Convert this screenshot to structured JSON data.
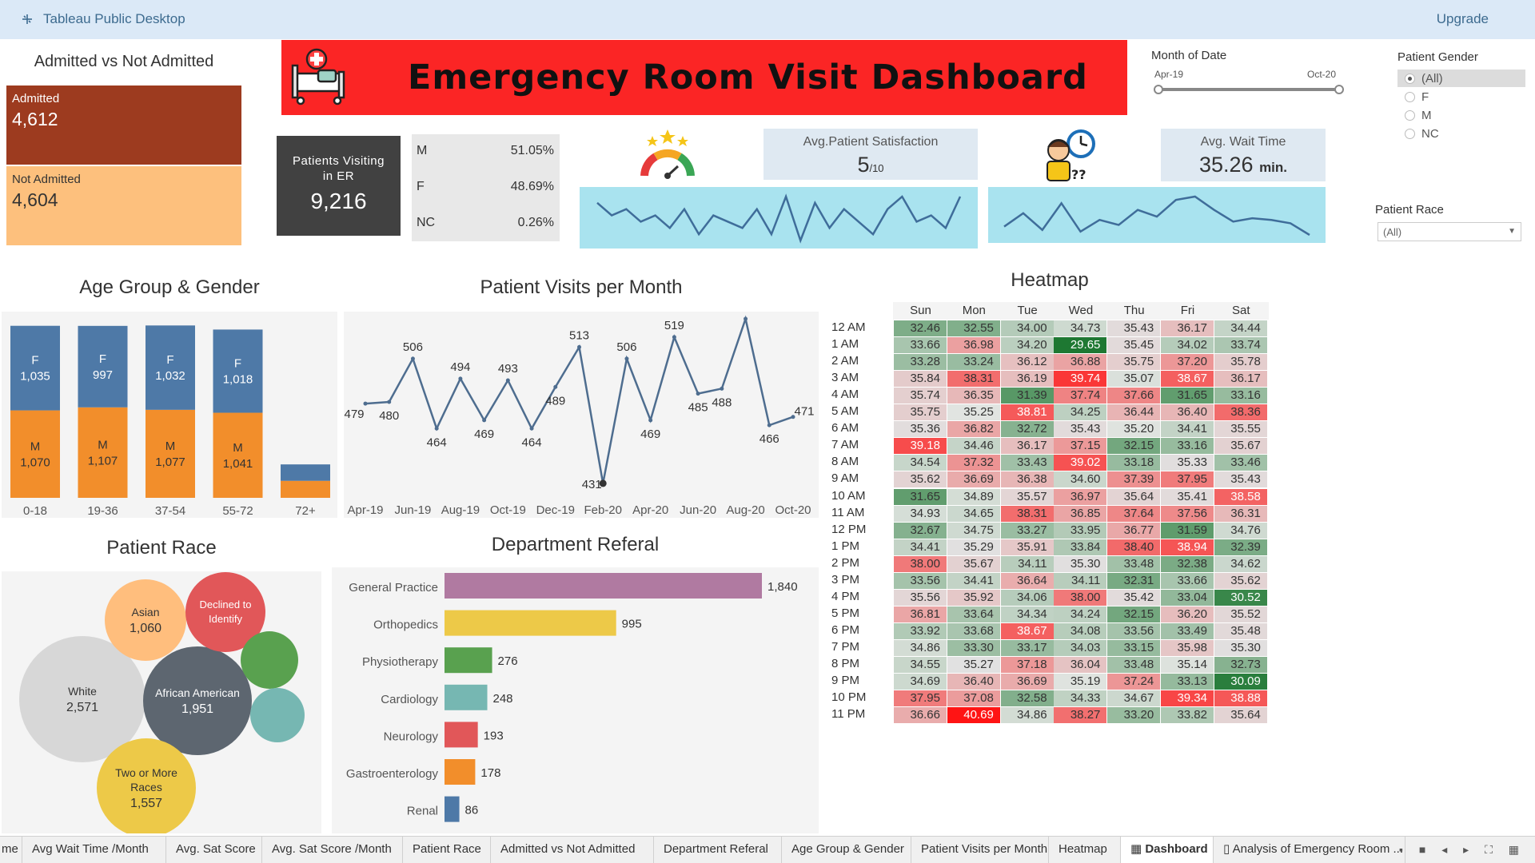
{
  "app": {
    "title": "Tableau Public Desktop",
    "upgrade": "Upgrade"
  },
  "banner": {
    "title": "Emergency Room Visit Dashboard",
    "icon": "hospital-bed-icon"
  },
  "admitted": {
    "title": "Admitted vs Not Admitted",
    "admitted_label": "Admitted",
    "admitted_value": "4,612",
    "not_admitted_label": "Not Admitted",
    "not_admitted_value": "4,604",
    "colors": {
      "admitted": "#9d3b1f",
      "not_admitted": "#fdc07d"
    }
  },
  "patients": {
    "label_line1": "Patients Visiting",
    "label_line2": "in  ER",
    "value": "9,216",
    "gender": [
      {
        "g": "M",
        "p": "51.05%"
      },
      {
        "g": "F",
        "p": "48.69%"
      },
      {
        "g": "NC",
        "p": "0.26%"
      }
    ]
  },
  "satisfaction": {
    "label": "Avg.Patient Satisfaction",
    "value": "5",
    "suffix": "/10",
    "icon": "rating-gauge-icon"
  },
  "wait": {
    "label": "Avg. Wait Time",
    "value": "35.26",
    "suffix": "min.",
    "icon": "waiting-person-clock-icon"
  },
  "filters": {
    "month_label": "Month of Date",
    "month_start": "Apr-19",
    "month_end": "Oct-20",
    "gender_label": "Patient Gender",
    "gender_options": [
      "(All)",
      "F",
      "M",
      "NC"
    ],
    "gender_selected": "(All)",
    "race_label": "Patient Race",
    "race_value": "(All)"
  },
  "age_chart": {
    "title": "Age Group & Gender",
    "categories": [
      "0-18",
      "19-36",
      "37-54",
      "55-72",
      "72+"
    ],
    "female": [
      1035,
      997,
      1032,
      1018,
      201
    ],
    "male": [
      1070,
      1107,
      1077,
      1041,
      208
    ],
    "female_labels": [
      "1,035",
      "997",
      "1,032",
      "1,018",
      ""
    ],
    "male_labels": [
      "1,070",
      "1,107",
      "1,077",
      "1,041",
      ""
    ],
    "f_letter": "F",
    "m_letter": "M",
    "colors": {
      "female": "#4e79a7",
      "male": "#f28e2b"
    }
  },
  "visits_chart": {
    "title": "Patient Visits per Month",
    "values": [
      479,
      480,
      506,
      464,
      494,
      469,
      493,
      464,
      489,
      513,
      431,
      506,
      469,
      519,
      485,
      488,
      530,
      466,
      471
    ],
    "tick_labels": [
      "Apr-19",
      "Jun-19",
      "Aug-19",
      "Oct-19",
      "Dec-19",
      "Feb-20",
      "Apr-20",
      "Jun-20",
      "Aug-20",
      "Oct-20"
    ],
    "color": "#4e6d8f"
  },
  "race_chart": {
    "title": "Patient Race",
    "bubbles": [
      {
        "name": "White",
        "value": "2,571",
        "color": "#d7d7d7"
      },
      {
        "name": "African American",
        "value": "1,951",
        "color": "#5d6670"
      },
      {
        "name": "Two or More Races",
        "value": "1,557",
        "color": "#edc948"
      },
      {
        "name": "Asian",
        "value": "1,060",
        "color": "#ffbe7d"
      },
      {
        "name": "Declined to Identify",
        "value": "",
        "color": "#e15759"
      },
      {
        "name": "",
        "value": "",
        "color": "#59a14f"
      },
      {
        "name": "",
        "value": "",
        "color": "#76b7b2"
      }
    ]
  },
  "dept_chart": {
    "title": "Department Referal",
    "items": [
      {
        "name": "General Practice",
        "value": 1840,
        "label": "1,840",
        "color": "#b07aa1"
      },
      {
        "name": "Orthopedics",
        "value": 995,
        "label": "995",
        "color": "#edc948"
      },
      {
        "name": "Physiotherapy",
        "value": 276,
        "label": "276",
        "color": "#59a14f"
      },
      {
        "name": "Cardiology",
        "value": 248,
        "label": "248",
        "color": "#76b7b2"
      },
      {
        "name": "Neurology",
        "value": 193,
        "label": "193",
        "color": "#e15759"
      },
      {
        "name": "Gastroenterology",
        "value": 178,
        "label": "178",
        "color": "#f28e2b"
      },
      {
        "name": "Renal",
        "value": 86,
        "label": "86",
        "color": "#4e79a7"
      }
    ]
  },
  "heatmap": {
    "title": "Heatmap",
    "days": [
      "Sun",
      "Mon",
      "Tue",
      "Wed",
      "Thu",
      "Fri",
      "Sat"
    ],
    "hours": [
      "12 AM",
      "1 AM",
      "2 AM",
      "3 AM",
      "4 AM",
      "5 AM",
      "6 AM",
      "7 AM",
      "8 AM",
      "9 AM",
      "10 AM",
      "11 AM",
      "12 PM",
      "1 PM",
      "2 PM",
      "3 PM",
      "4 PM",
      "5 PM",
      "6 PM",
      "7 PM",
      "8 PM",
      "9 PM",
      "10 PM",
      "11 PM"
    ],
    "values": [
      [
        "32.46",
        "32.55",
        "34.00",
        "34.73",
        "35.43",
        "36.17",
        "34.44"
      ],
      [
        "33.66",
        "36.98",
        "34.20",
        "29.65",
        "35.45",
        "34.02",
        "33.74"
      ],
      [
        "33.28",
        "33.24",
        "36.12",
        "36.88",
        "35.75",
        "37.20",
        "35.78"
      ],
      [
        "35.84",
        "38.31",
        "36.19",
        "39.74",
        "35.07",
        "38.67",
        "36.17"
      ],
      [
        "35.74",
        "36.35",
        "31.39",
        "37.74",
        "37.66",
        "31.65",
        "33.16"
      ],
      [
        "35.75",
        "35.25",
        "38.81",
        "34.25",
        "36.44",
        "36.40",
        "38.36"
      ],
      [
        "35.36",
        "36.82",
        "32.72",
        "35.43",
        "35.20",
        "34.41",
        "35.55"
      ],
      [
        "39.18",
        "34.46",
        "36.17",
        "37.15",
        "32.15",
        "33.16",
        "35.67"
      ],
      [
        "34.54",
        "37.32",
        "33.43",
        "39.02",
        "33.18",
        "35.33",
        "33.46"
      ],
      [
        "35.62",
        "36.69",
        "36.38",
        "34.60",
        "37.39",
        "37.95",
        "35.43"
      ],
      [
        "31.65",
        "34.89",
        "35.57",
        "36.97",
        "35.64",
        "35.41",
        "38.58"
      ],
      [
        "34.93",
        "34.65",
        "38.31",
        "36.85",
        "37.64",
        "37.56",
        "36.31"
      ],
      [
        "32.67",
        "34.75",
        "33.27",
        "33.95",
        "36.77",
        "31.59",
        "34.76"
      ],
      [
        "34.41",
        "35.29",
        "35.91",
        "33.84",
        "38.40",
        "38.94",
        "32.39"
      ],
      [
        "38.00",
        "35.67",
        "34.11",
        "35.30",
        "33.48",
        "32.38",
        "34.62"
      ],
      [
        "33.56",
        "34.41",
        "36.64",
        "34.11",
        "32.31",
        "33.66",
        "35.62"
      ],
      [
        "35.56",
        "35.92",
        "34.06",
        "38.00",
        "35.42",
        "33.04",
        "30.52"
      ],
      [
        "36.81",
        "33.64",
        "34.34",
        "34.24",
        "32.15",
        "36.20",
        "35.52"
      ],
      [
        "33.92",
        "33.68",
        "38.67",
        "34.08",
        "33.56",
        "33.49",
        "35.48"
      ],
      [
        "34.86",
        "33.30",
        "33.17",
        "34.03",
        "33.15",
        "35.98",
        "35.30"
      ],
      [
        "34.55",
        "35.27",
        "37.18",
        "36.04",
        "33.48",
        "35.14",
        "32.73"
      ],
      [
        "34.69",
        "36.40",
        "36.69",
        "35.19",
        "37.24",
        "33.13",
        "30.09"
      ],
      [
        "37.95",
        "37.08",
        "32.58",
        "34.33",
        "34.67",
        "39.34",
        "38.88"
      ],
      [
        "36.66",
        "40.69",
        "34.86",
        "38.27",
        "33.20",
        "33.82",
        "35.64"
      ]
    ]
  },
  "sparklines": {
    "satisfaction": [
      7,
      5,
      6,
      4,
      5,
      3,
      6,
      2,
      5,
      4,
      3,
      6,
      2,
      8,
      1,
      7,
      3,
      6,
      4,
      2,
      6,
      8,
      4,
      5,
      3,
      8
    ],
    "wait": [
      34.8,
      35.6,
      34.6,
      36.2,
      34.5,
      35.2,
      34.9,
      35.8,
      35.4,
      36.4,
      36.6,
      35.8,
      35.1,
      35.3,
      35.2,
      35.0,
      34.3
    ]
  },
  "tabs": [
    "me",
    "Avg Wait Time /Month",
    "Avg. Sat Score",
    "Avg. Sat Score /Month",
    "Patient Race",
    "Admitted vs Not Admitted",
    "Department Referal",
    "Age Group & Gender",
    "Patient Visits per Month",
    "Heatmap",
    "Dashboard",
    "Analysis of Emergency Room ..."
  ],
  "active_tab": "Dashboard"
}
